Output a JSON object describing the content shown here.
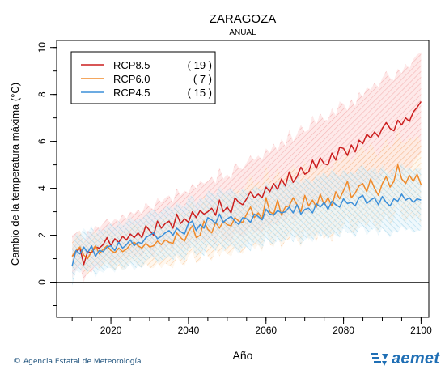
{
  "chart_data": {
    "type": "line",
    "title": "ZARAGOZA",
    "subtitle": "ANUAL",
    "xlabel": "Año",
    "ylabel": "Cambio  de la temperatura máxima (°C)",
    "xlim": [
      2006,
      2102
    ],
    "ylim": [
      -1.5,
      10.3
    ],
    "x_ticks": [
      2020,
      2040,
      2060,
      2080,
      2100
    ],
    "y_ticks": [
      0,
      2,
      4,
      6,
      8,
      10
    ],
    "x_minor_step": 5,
    "y_minor_step": 1,
    "legend_position": "top-left",
    "zero_line": 0,
    "series": [
      {
        "name": "RCP8.5",
        "count": "( 19 )",
        "color": "#cc1f1f",
        "band_color": "#f4a6a6",
        "x_start": 2010,
        "x_step": 1,
        "values": [
          1.1,
          1.3,
          1.45,
          0.75,
          1.3,
          1.25,
          1.5,
          1.45,
          1.6,
          1.9,
          1.55,
          1.85,
          1.7,
          1.95,
          1.8,
          2.05,
          1.9,
          2.1,
          1.9,
          2.4,
          2.2,
          2.0,
          2.6,
          2.3,
          2.5,
          2.6,
          2.3,
          2.9,
          2.5,
          2.7,
          2.55,
          3.0,
          2.75,
          3.05,
          2.9,
          3.0,
          3.15,
          2.85,
          3.5,
          3.0,
          3.2,
          2.95,
          3.6,
          3.4,
          3.3,
          3.55,
          3.85,
          3.6,
          3.75,
          3.6,
          4.05,
          3.85,
          4.2,
          3.95,
          4.4,
          4.1,
          4.7,
          4.25,
          4.5,
          4.9,
          4.6,
          4.7,
          5.2,
          4.85,
          5.3,
          5.05,
          5.0,
          5.5,
          5.2,
          5.75,
          5.7,
          5.4,
          5.85,
          5.55,
          6.05,
          5.9,
          6.3,
          6.15,
          6.4,
          6.2,
          6.55,
          6.8,
          6.55,
          6.45,
          6.9,
          6.7,
          7.0,
          6.85,
          7.25,
          7.45,
          7.7
        ],
        "upper": [
          2.0,
          2.1,
          2.2,
          1.6,
          2.2,
          2.1,
          2.4,
          2.3,
          2.5,
          2.7,
          2.5,
          2.7,
          2.6,
          2.9,
          2.7,
          3.0,
          2.9,
          3.1,
          2.9,
          3.4,
          3.2,
          3.1,
          3.6,
          3.4,
          3.6,
          3.7,
          3.4,
          4.0,
          3.7,
          3.9,
          3.8,
          4.2,
          4.0,
          4.3,
          4.2,
          4.3,
          4.5,
          4.2,
          4.9,
          4.4,
          4.6,
          4.4,
          5.1,
          4.9,
          4.8,
          5.1,
          5.4,
          5.2,
          5.4,
          5.2,
          5.7,
          5.5,
          5.9,
          5.6,
          6.1,
          5.8,
          6.5,
          6.0,
          6.3,
          6.7,
          6.4,
          6.5,
          7.1,
          6.7,
          7.2,
          6.9,
          6.9,
          7.4,
          7.1,
          7.7,
          7.6,
          7.3,
          7.8,
          7.5,
          8.1,
          7.9,
          8.3,
          8.2,
          8.5,
          8.3,
          8.7,
          9.0,
          8.7,
          8.6,
          9.1,
          8.9,
          9.3,
          9.1,
          9.5,
          9.7,
          9.8
        ],
        "lower": [
          0.2,
          0.5,
          0.7,
          0.0,
          0.5,
          0.4,
          0.7,
          0.6,
          0.8,
          1.1,
          0.7,
          1.0,
          0.8,
          1.1,
          0.9,
          1.2,
          1.0,
          1.2,
          1.0,
          1.5,
          1.3,
          1.0,
          1.7,
          1.3,
          1.5,
          1.6,
          1.3,
          1.9,
          1.4,
          1.6,
          1.4,
          1.9,
          1.6,
          1.9,
          1.7,
          1.8,
          1.9,
          1.6,
          2.2,
          1.7,
          1.9,
          1.6,
          2.2,
          2.0,
          1.9,
          2.1,
          2.4,
          2.1,
          2.2,
          2.1,
          2.5,
          2.3,
          2.6,
          2.4,
          2.8,
          2.5,
          3.0,
          2.6,
          2.8,
          3.2,
          2.9,
          3.0,
          3.4,
          3.1,
          3.5,
          3.3,
          3.2,
          3.7,
          3.4,
          3.9,
          3.8,
          3.5,
          4.0,
          3.7,
          4.1,
          4.0,
          4.4,
          4.2,
          4.4,
          4.2,
          4.6,
          4.8,
          4.5,
          4.4,
          4.8,
          4.6,
          4.9,
          4.7,
          5.1,
          5.3,
          5.5
        ]
      },
      {
        "name": "RCP6.0",
        "count": "(  7 )",
        "color": "#f08a2a",
        "band_color": "#fbd2a6",
        "x_start": 2010,
        "x_step": 1,
        "values": [
          1.1,
          1.35,
          1.5,
          1.15,
          1.0,
          1.3,
          1.55,
          1.2,
          1.4,
          1.55,
          1.35,
          1.25,
          1.45,
          1.3,
          1.4,
          1.6,
          1.7,
          1.55,
          1.45,
          1.65,
          1.5,
          1.55,
          1.75,
          1.6,
          1.8,
          1.7,
          1.65,
          2.1,
          1.9,
          1.75,
          2.15,
          2.4,
          1.9,
          2.0,
          2.6,
          2.25,
          2.1,
          2.55,
          2.3,
          2.6,
          2.45,
          2.4,
          2.75,
          2.6,
          2.55,
          2.9,
          3.2,
          2.75,
          2.95,
          2.7,
          3.6,
          3.0,
          2.9,
          3.5,
          2.85,
          3.2,
          3.25,
          3.6,
          3.3,
          3.0,
          3.7,
          3.25,
          3.5,
          3.2,
          3.75,
          3.3,
          3.6,
          3.25,
          3.85,
          3.55,
          3.9,
          4.3,
          3.6,
          3.8,
          4.1,
          4.2,
          3.85,
          4.4,
          4.0,
          3.7,
          4.2,
          4.5,
          4.05,
          4.3,
          5.0,
          4.4,
          4.2,
          4.55,
          4.3,
          4.6,
          4.15
        ],
        "upper": [
          1.7,
          2.0,
          2.2,
          1.8,
          1.7,
          2.0,
          2.2,
          1.9,
          2.1,
          2.3,
          2.1,
          2.0,
          2.2,
          2.1,
          2.2,
          2.4,
          2.5,
          2.4,
          2.3,
          2.5,
          2.4,
          2.5,
          2.7,
          2.6,
          2.8,
          2.7,
          2.7,
          3.1,
          3.0,
          2.8,
          3.2,
          3.5,
          3.0,
          3.1,
          3.7,
          3.4,
          3.3,
          3.7,
          3.5,
          3.8,
          3.7,
          3.7,
          4.0,
          3.9,
          3.9,
          4.2,
          4.6,
          4.1,
          4.3,
          4.1,
          5.0,
          4.4,
          4.3,
          4.9,
          4.3,
          4.6,
          4.7,
          5.0,
          4.8,
          4.5,
          5.2,
          4.7,
          5.0,
          4.7,
          5.2,
          4.8,
          5.1,
          4.8,
          5.4,
          5.1,
          5.4,
          5.8,
          5.1,
          5.4,
          5.7,
          5.8,
          5.4,
          6.0,
          5.6,
          5.3,
          5.8,
          6.1,
          5.7,
          5.9,
          6.6,
          6.0,
          5.9,
          6.2,
          6.0,
          6.3,
          5.9
        ],
        "lower": [
          0.5,
          0.7,
          0.8,
          0.5,
          0.3,
          0.6,
          0.9,
          0.5,
          0.7,
          0.8,
          0.6,
          0.5,
          0.7,
          0.5,
          0.6,
          0.8,
          0.9,
          0.7,
          0.6,
          0.8,
          0.6,
          0.6,
          0.8,
          0.6,
          0.8,
          0.7,
          0.6,
          1.1,
          0.8,
          0.7,
          1.1,
          1.3,
          0.8,
          0.9,
          1.5,
          1.1,
          0.9,
          1.4,
          1.1,
          1.4,
          1.2,
          1.1,
          1.5,
          1.3,
          1.2,
          1.6,
          1.8,
          1.4,
          1.6,
          1.3,
          2.2,
          1.6,
          1.5,
          2.1,
          1.4,
          1.8,
          1.8,
          2.2,
          1.8,
          1.5,
          2.2,
          1.8,
          2.0,
          1.7,
          2.3,
          1.8,
          2.1,
          1.7,
          2.3,
          2.0,
          2.4,
          2.8,
          2.1,
          2.2,
          2.5,
          2.6,
          2.3,
          2.8,
          2.4,
          2.1,
          2.6,
          2.9,
          2.4,
          2.7,
          3.4,
          2.8,
          2.5,
          2.9,
          2.6,
          2.9,
          2.4
        ]
      },
      {
        "name": "RCP4.5",
        "count": "( 15 )",
        "color": "#3b8fd9",
        "band_color": "#a7d5ec",
        "x_start": 2010,
        "x_step": 1,
        "values": [
          0.7,
          1.35,
          1.2,
          1.5,
          1.25,
          1.55,
          1.1,
          1.35,
          1.3,
          1.5,
          1.55,
          1.35,
          1.7,
          1.45,
          1.6,
          1.8,
          1.55,
          1.7,
          1.65,
          1.9,
          2.0,
          2.1,
          1.85,
          1.95,
          2.1,
          2.2,
          2.0,
          2.3,
          2.15,
          2.05,
          2.5,
          2.6,
          2.2,
          2.45,
          2.3,
          2.75,
          2.65,
          2.5,
          2.9,
          2.55,
          2.7,
          2.8,
          2.6,
          2.45,
          2.75,
          2.7,
          2.55,
          2.9,
          2.8,
          2.65,
          3.1,
          2.9,
          2.85,
          3.05,
          2.95,
          3.0,
          3.2,
          2.95,
          3.3,
          2.9,
          3.1,
          3.15,
          2.95,
          3.35,
          3.2,
          3.4,
          3.1,
          3.45,
          3.3,
          3.2,
          3.55,
          3.35,
          3.4,
          3.25,
          3.6,
          3.7,
          3.35,
          3.5,
          3.6,
          3.3,
          3.65,
          3.4,
          3.25,
          3.55,
          3.45,
          3.75,
          3.5,
          3.6,
          3.4,
          3.55,
          3.5
        ],
        "upper": [
          1.5,
          2.1,
          2.0,
          2.3,
          2.1,
          2.4,
          2.0,
          2.3,
          2.2,
          2.4,
          2.5,
          2.3,
          2.6,
          2.4,
          2.6,
          2.8,
          2.6,
          2.7,
          2.7,
          2.9,
          3.0,
          3.1,
          2.9,
          3.0,
          3.2,
          3.3,
          3.1,
          3.4,
          3.3,
          3.2,
          3.6,
          3.7,
          3.3,
          3.6,
          3.5,
          3.9,
          3.8,
          3.7,
          4.1,
          3.8,
          3.9,
          4.0,
          3.8,
          3.7,
          4.0,
          3.9,
          3.8,
          4.1,
          4.0,
          3.9,
          4.3,
          4.1,
          4.1,
          4.3,
          4.2,
          4.2,
          4.4,
          4.2,
          4.6,
          4.2,
          4.4,
          4.4,
          4.2,
          4.6,
          4.5,
          4.7,
          4.4,
          4.8,
          4.6,
          4.5,
          4.8,
          4.6,
          4.7,
          4.6,
          4.9,
          5.0,
          4.7,
          4.8,
          4.9,
          4.6,
          5.0,
          4.7,
          4.6,
          4.9,
          4.8,
          5.1,
          4.8,
          4.9,
          4.7,
          4.9,
          4.8
        ],
        "lower": [
          -0.2,
          0.5,
          0.4,
          0.6,
          0.4,
          0.7,
          0.2,
          0.5,
          0.4,
          0.6,
          0.6,
          0.4,
          0.8,
          0.5,
          0.6,
          0.8,
          0.5,
          0.7,
          0.6,
          0.9,
          1.0,
          1.1,
          0.8,
          0.9,
          1.0,
          1.1,
          0.9,
          1.2,
          1.0,
          0.9,
          1.4,
          1.5,
          1.1,
          1.3,
          1.1,
          1.6,
          1.5,
          1.3,
          1.7,
          1.3,
          1.5,
          1.6,
          1.4,
          1.2,
          1.5,
          1.5,
          1.3,
          1.7,
          1.6,
          1.4,
          1.9,
          1.7,
          1.6,
          1.8,
          1.7,
          1.8,
          2.0,
          1.7,
          2.0,
          1.6,
          1.8,
          1.9,
          1.7,
          2.1,
          1.9,
          2.1,
          1.8,
          2.1,
          2.0,
          1.9,
          2.3,
          2.1,
          2.1,
          1.9,
          2.3,
          2.4,
          2.0,
          2.2,
          2.3,
          2.0,
          2.3,
          2.1,
          1.9,
          2.2,
          2.1,
          2.4,
          2.2,
          2.3,
          2.1,
          2.2,
          2.2
        ]
      }
    ]
  },
  "footer": {
    "credit_symbol": "©",
    "credit_text": "Agencia Estatal de Meteorología",
    "logo_text": "aemet"
  }
}
